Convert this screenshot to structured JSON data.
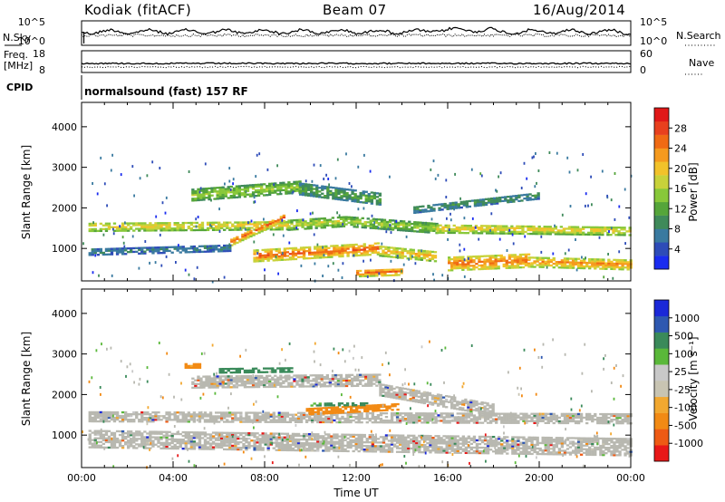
{
  "header": {
    "station": "Kodiak (fitACF)",
    "beam": "Beam 07",
    "date": "16/Aug/2014"
  },
  "summary_panels": {
    "nsky_label": "N.Sky",
    "nsky_ticks": [
      "10^5",
      "10^0"
    ],
    "nsearch_label": "N.Search",
    "nsearch_ticks": [
      "10^5",
      "10^0"
    ],
    "freq_label_line1": "Freq.",
    "freq_label_line2": "[MHz]",
    "freq_ticks": [
      "18",
      "8"
    ],
    "nave_label": "Nave",
    "nave_ticks": [
      "60",
      "0"
    ],
    "cpid_label": "CPID",
    "cpid_text": "normalsound (fast) 157 RF"
  },
  "colors": {
    "power": [
      "#1a2cf0",
      "#2e4cb8",
      "#3a7aa0",
      "#3f8a5a",
      "#55a53a",
      "#88c83a",
      "#c8d23a",
      "#f2c22a",
      "#f59a1e",
      "#f06a14",
      "#e8401e",
      "#e01818"
    ],
    "velocity": [
      "#e81818",
      "#ee5a14",
      "#f28a14",
      "#f2a830",
      "#c8c4b2",
      "#c8c8c8",
      "#5ab83a",
      "#3a8a5a",
      "#2e58b0",
      "#1a28d8"
    ],
    "ground_scatter": "#b8b8b0"
  },
  "chart_data": [
    {
      "type": "heatmap",
      "panel": "power",
      "xlabel": "",
      "ylabel": "Slant Range [km]",
      "xlim": [
        "00:00",
        "24:00"
      ],
      "ylim": [
        200,
        4600
      ],
      "yticks": [
        "1000",
        "2000",
        "3000",
        "4000"
      ],
      "colorbar_label": "Power [dB]",
      "colorbar_ticks": [
        "4",
        "8",
        "12",
        "16",
        "20",
        "24",
        "28"
      ],
      "colorbar_range": [
        0,
        32
      ],
      "bands": [
        {
          "t0": 0.3,
          "t1": 9.0,
          "r_center_start": 1520,
          "r_center_end": 1560,
          "halfwidth": 110,
          "level": 20
        },
        {
          "t0": 9.0,
          "t1": 11.5,
          "r_center_start": 1560,
          "r_center_end": 1650,
          "halfwidth": 120,
          "level": 18
        },
        {
          "t0": 11.5,
          "t1": 15.5,
          "r_center_start": 1650,
          "r_center_end": 1480,
          "halfwidth": 120,
          "level": 16
        },
        {
          "t0": 15.5,
          "t1": 24.0,
          "r_center_start": 1480,
          "r_center_end": 1420,
          "halfwidth": 110,
          "level": 20
        },
        {
          "t0": 4.8,
          "t1": 9.5,
          "r_center_start": 2300,
          "r_center_end": 2500,
          "halfwidth": 140,
          "level": 16
        },
        {
          "t0": 9.5,
          "t1": 13.0,
          "r_center_start": 2450,
          "r_center_end": 2200,
          "halfwidth": 140,
          "level": 12
        },
        {
          "t0": 6.5,
          "t1": 8.8,
          "r_center_start": 1150,
          "r_center_end": 1750,
          "halfwidth": 90,
          "level": 26
        },
        {
          "t0": 7.5,
          "t1": 13.0,
          "r_center_start": 800,
          "r_center_end": 980,
          "halfwidth": 140,
          "level": 26
        },
        {
          "t0": 13.0,
          "t1": 15.5,
          "r_center_start": 920,
          "r_center_end": 780,
          "halfwidth": 120,
          "level": 22
        },
        {
          "t0": 12.0,
          "t1": 14.0,
          "r_center_start": 380,
          "r_center_end": 420,
          "halfwidth": 90,
          "level": 26
        },
        {
          "t0": 16.0,
          "t1": 19.5,
          "r_center_start": 600,
          "r_center_end": 680,
          "halfwidth": 160,
          "level": 26
        },
        {
          "t0": 19.5,
          "t1": 24.0,
          "r_center_start": 650,
          "r_center_end": 580,
          "halfwidth": 120,
          "level": 24
        },
        {
          "t0": 0.3,
          "t1": 6.5,
          "r_center_start": 900,
          "r_center_end": 1000,
          "halfwidth": 80,
          "level": 8
        },
        {
          "t0": 14.5,
          "t1": 20.0,
          "r_center_start": 1950,
          "r_center_end": 2300,
          "halfwidth": 90,
          "level": 10
        }
      ]
    },
    {
      "type": "heatmap",
      "panel": "velocity",
      "xlabel": "Time UT",
      "ylabel": "Slant Range [km]",
      "xlim": [
        "00:00",
        "24:00"
      ],
      "xticks": [
        "00:00",
        "04:00",
        "08:00",
        "12:00",
        "16:00",
        "20:00",
        "00:00"
      ],
      "ylim": [
        200,
        4600
      ],
      "yticks": [
        "1000",
        "2000",
        "3000",
        "4000"
      ],
      "colorbar_label": "Velocity [m s⁻¹]",
      "colorbar_ticks": [
        "-1000",
        "-500",
        "-100",
        "-25",
        "25",
        "100",
        "500",
        "1000"
      ],
      "bands": [
        {
          "t0": 0.3,
          "t1": 24.0,
          "r_center_start": 1450,
          "r_center_end": 1400,
          "halfwidth": 130,
          "vel": "ground"
        },
        {
          "t0": 4.8,
          "t1": 13.0,
          "r_center_start": 2300,
          "r_center_end": 2350,
          "halfwidth": 150,
          "vel": "ground"
        },
        {
          "t0": 0.3,
          "t1": 24.0,
          "r_center_start": 900,
          "r_center_end": 700,
          "halfwidth": 220,
          "vel": "ground"
        },
        {
          "t0": 13.0,
          "t1": 18.0,
          "r_center_start": 2100,
          "r_center_end": 1600,
          "halfwidth": 140,
          "vel": "ground"
        },
        {
          "t0": 6.0,
          "t1": 9.2,
          "r_center_start": 2580,
          "r_center_end": 2600,
          "halfwidth": 60,
          "vel": 150
        },
        {
          "t0": 9.8,
          "t1": 13.8,
          "r_center_start": 1560,
          "r_center_end": 1680,
          "halfwidth": 70,
          "vel": -150
        },
        {
          "t0": 10.0,
          "t1": 12.5,
          "r_center_start": 1750,
          "r_center_end": 1760,
          "halfwidth": 40,
          "vel": 120
        },
        {
          "t0": 4.5,
          "t1": 5.2,
          "r_center_start": 2700,
          "r_center_end": 2700,
          "halfwidth": 60,
          "vel": -120
        }
      ]
    }
  ]
}
